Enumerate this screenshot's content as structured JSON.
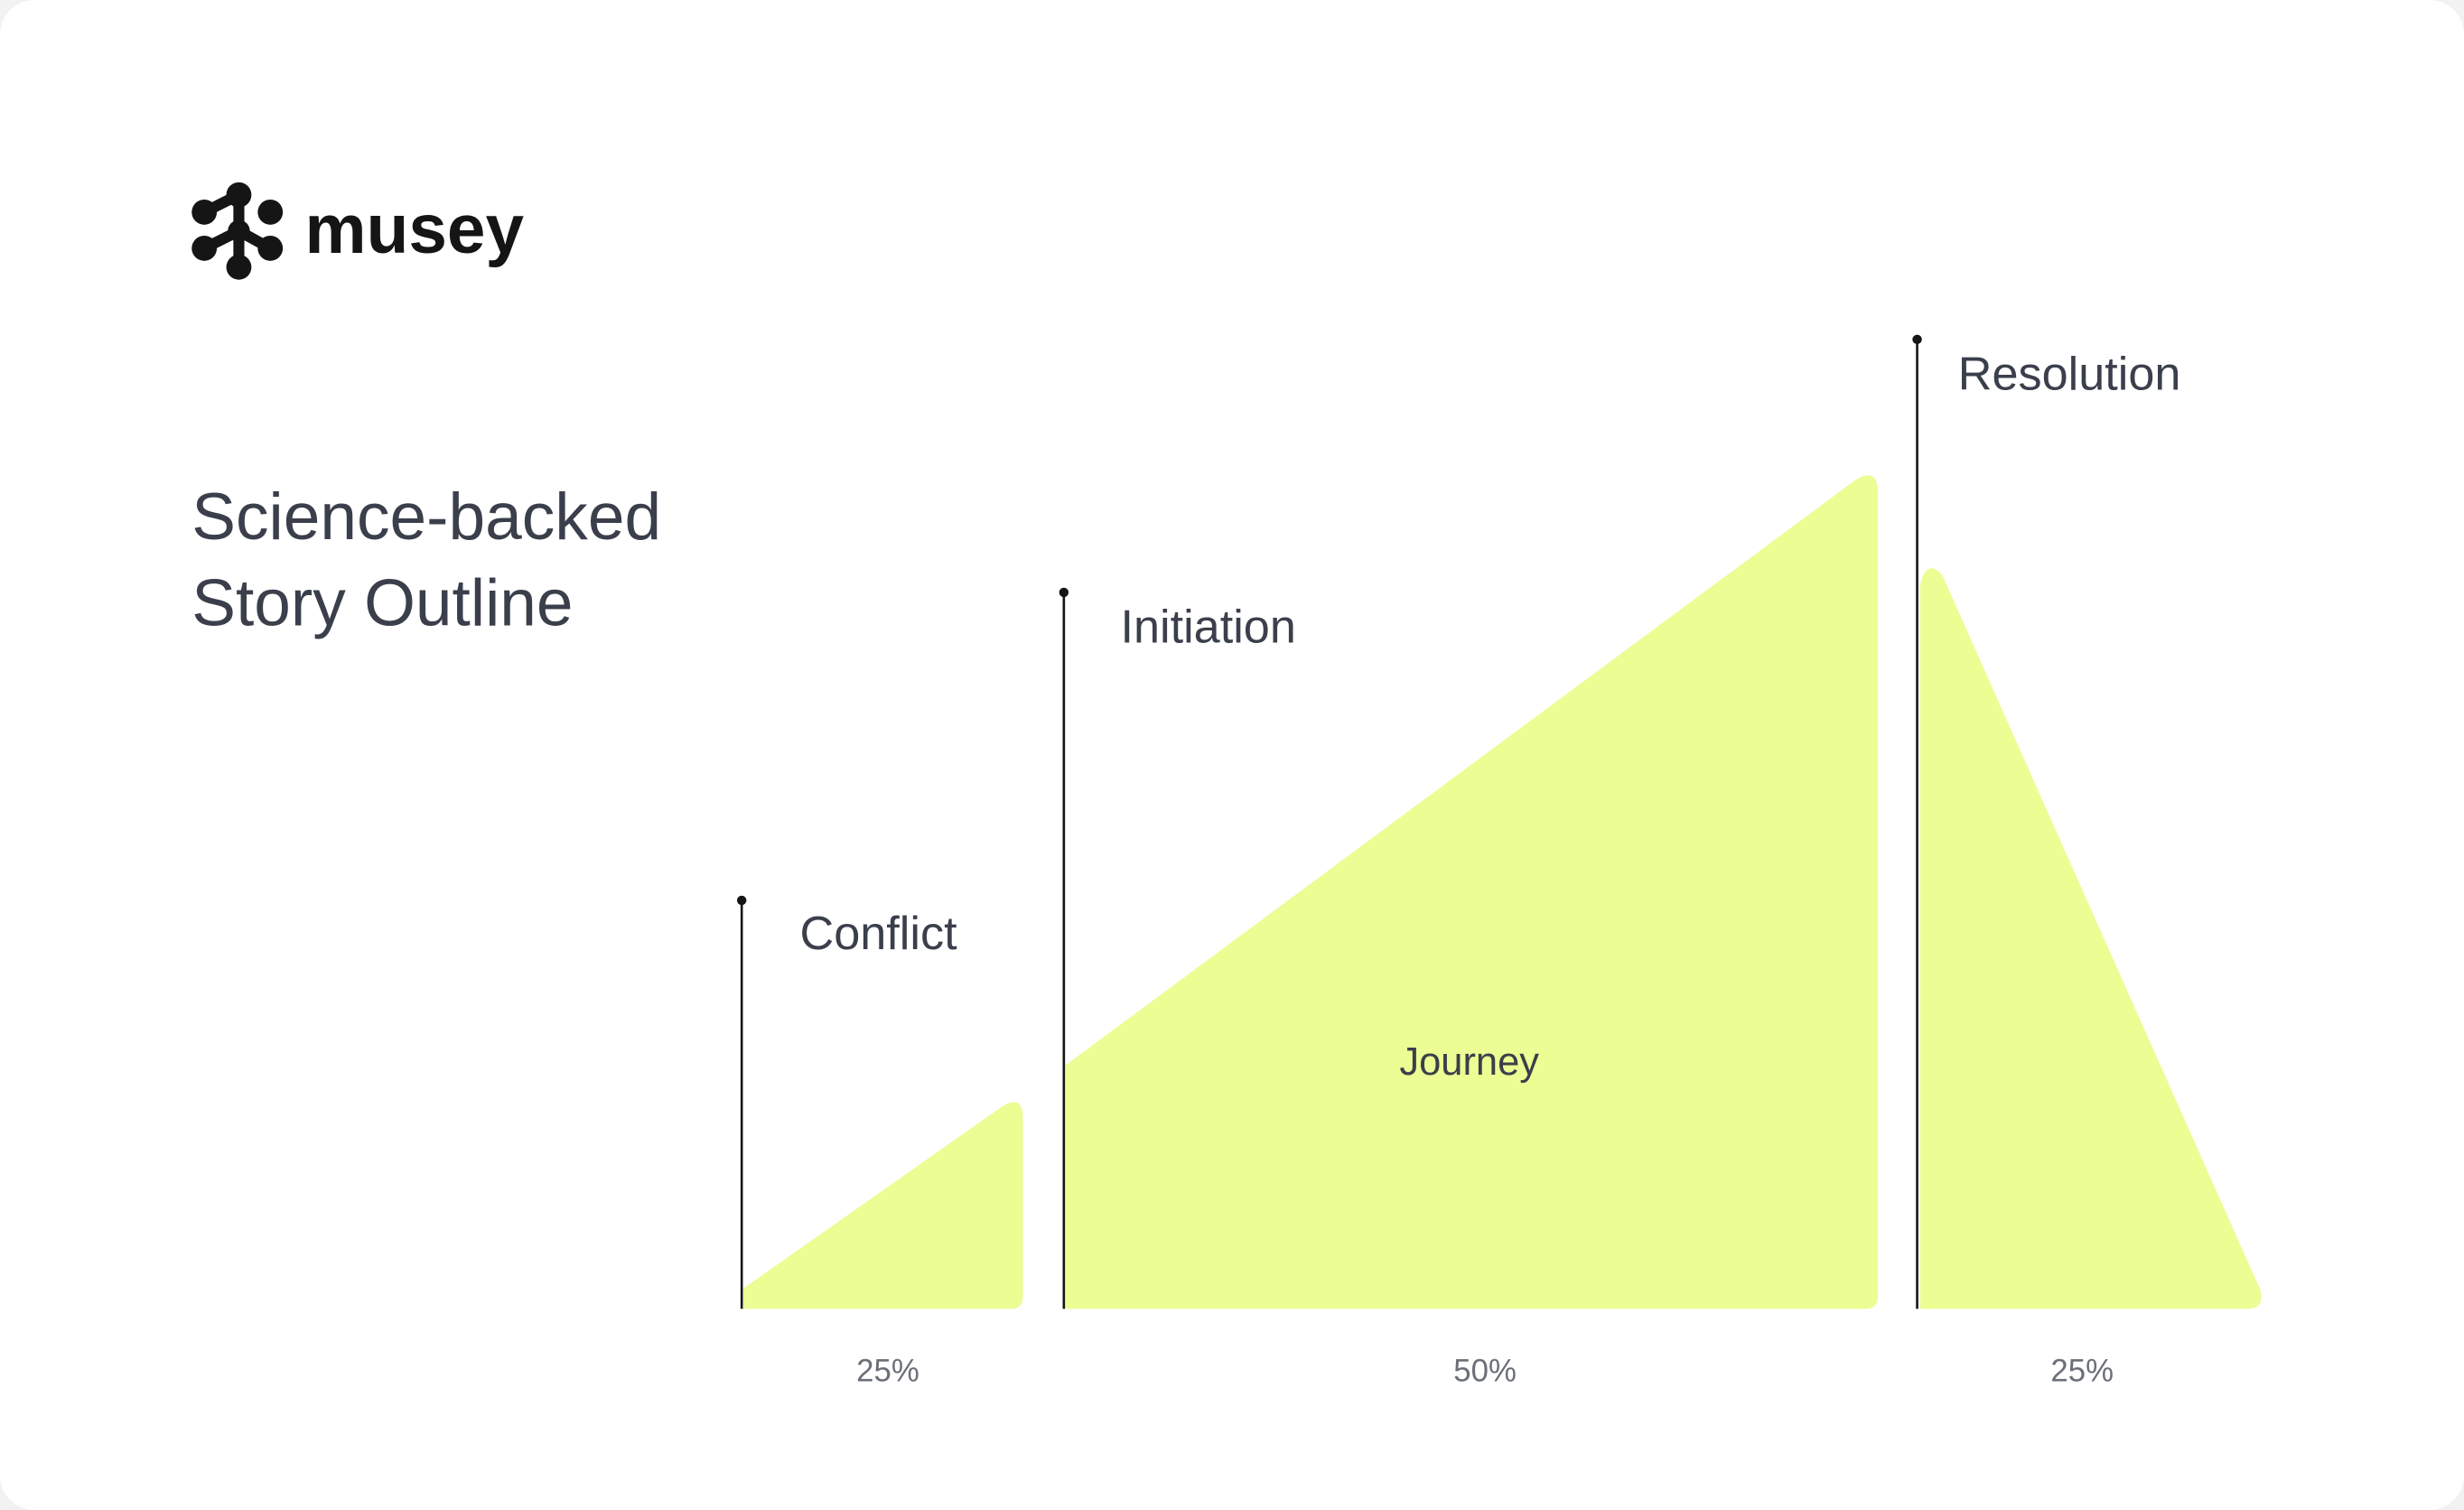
{
  "logo": {
    "text": "musey"
  },
  "title": {
    "line1": "Science-backed",
    "line2": "Story Outline"
  },
  "stages": [
    {
      "label": "Conflict",
      "share": "25%"
    },
    {
      "label": "Initiation",
      "inner_label": "Journey",
      "share": "50%"
    },
    {
      "label": "Resolution",
      "share": "25%"
    }
  ]
}
